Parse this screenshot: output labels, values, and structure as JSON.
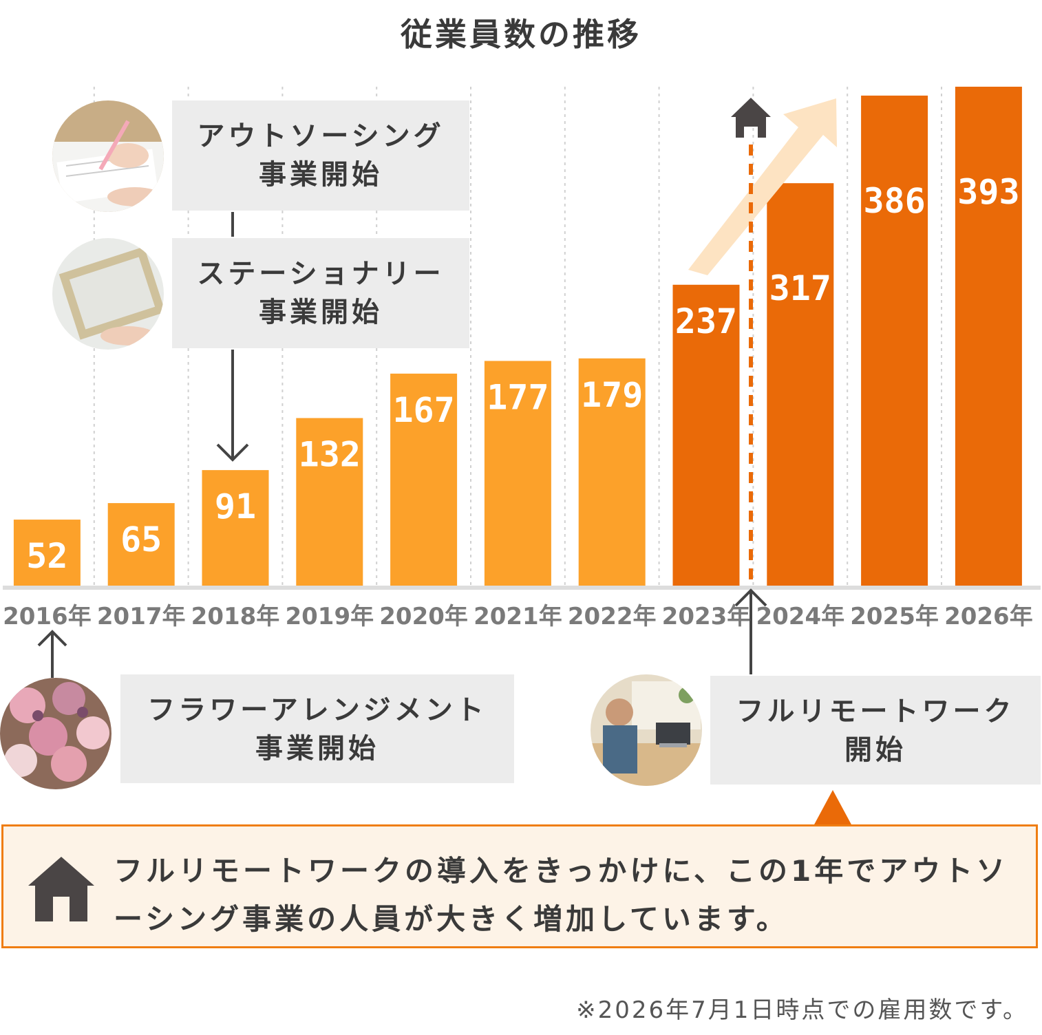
{
  "title": "従業員数の推移",
  "chart_data": {
    "type": "bar",
    "categories": [
      "2016年",
      "2017年",
      "2018年",
      "2019年",
      "2020年",
      "2021年",
      "2022年",
      "2023年",
      "2024年",
      "2025年",
      "2026年"
    ],
    "values": [
      52,
      65,
      91,
      132,
      167,
      177,
      179,
      237,
      317,
      386,
      393
    ],
    "highlight_from_index": 7,
    "colors": {
      "base": "#fca12a",
      "highlight": "#ea6a08",
      "axis": "#dddddd",
      "grid": "#d0d0d0",
      "arrow": "#444444",
      "trend": "#fde3c2"
    },
    "ylim": [
      0,
      420
    ],
    "grid": true,
    "annotations": [
      {
        "lines": [
          "アウトソーシング",
          "事業開始"
        ],
        "photo_icon": "writing-document-photo"
      },
      {
        "lines": [
          "ステーショナリー",
          "事業開始"
        ],
        "photo_icon": "frame-canvas-photo",
        "points_to": "2018年"
      },
      {
        "lines": [
          "フラワーアレンジメント",
          "事業開始"
        ],
        "photo_icon": "flowers-photo",
        "points_to": "2016年"
      },
      {
        "lines": [
          "フルリモートワーク",
          "開始"
        ],
        "photo_icon": "remote-work-photo",
        "points_to": "2023年",
        "marker_icon": "house-icon"
      }
    ]
  },
  "note": {
    "icon": "house-icon",
    "text": "フルリモートワークの導入をきっかけに、この1年でアウトソーシング事業の人員が大きく増加しています。"
  },
  "footnote": "※2026年7月1日時点での雇用数です。"
}
